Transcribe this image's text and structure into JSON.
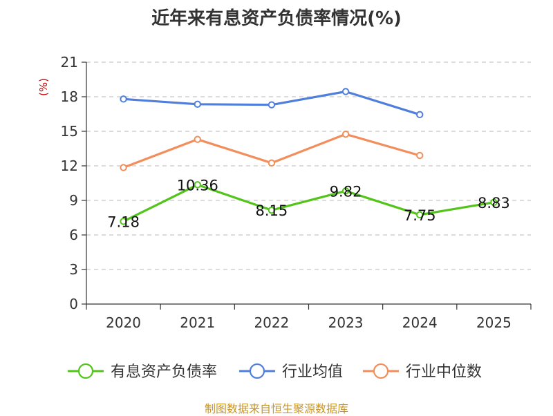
{
  "chart_data": {
    "type": "line",
    "title": "近年来有息资产负债率情况(%)",
    "unit": "(%)",
    "x": [
      "2020",
      "2021",
      "2022",
      "2023",
      "2024",
      "2025"
    ],
    "ylim": [
      0,
      21
    ],
    "yticks": [
      0,
      3,
      6,
      9,
      12,
      15,
      18,
      21
    ],
    "grid": true,
    "legend_position": "bottom",
    "series": [
      {
        "name": "有息资产负债率",
        "color": "#52c41a",
        "values": [
          7.18,
          10.36,
          8.15,
          9.82,
          7.75,
          8.83
        ],
        "labels": [
          "7.18",
          "10.36",
          "8.15",
          "9.82",
          "7.75",
          "8.83"
        ]
      },
      {
        "name": "行业均值",
        "color": "#4f7fdb",
        "values": [
          17.8,
          17.35,
          17.3,
          18.45,
          16.45,
          null
        ]
      },
      {
        "name": "行业中位数",
        "color": "#f28e5b",
        "values": [
          11.85,
          14.3,
          12.25,
          14.75,
          12.9,
          null
        ]
      }
    ]
  },
  "footer": {
    "source": "制图数据来自恒生聚源数据库"
  }
}
